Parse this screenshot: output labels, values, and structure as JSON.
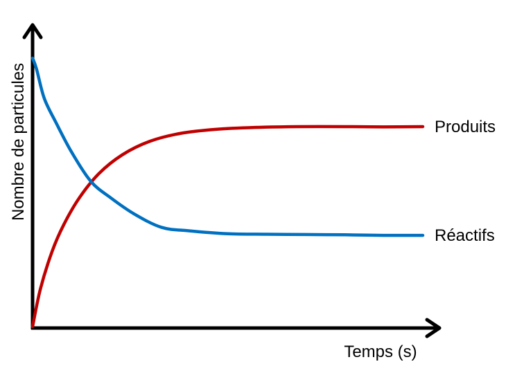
{
  "chart_data": {
    "type": "line",
    "title": "",
    "xlabel": "Temps (s)",
    "ylabel": "Nombre de particules",
    "xlim": [
      0,
      100
    ],
    "ylim": [
      0,
      100
    ],
    "grid": false,
    "ticks": false,
    "series": [
      {
        "name": "Produits",
        "color": "#c00000",
        "x": [
          0,
          2,
          5,
          8,
          12,
          17,
          23,
          30,
          38,
          47,
          57,
          68,
          80,
          90,
          100
        ],
        "y": [
          0,
          14,
          28,
          38,
          48,
          57,
          64,
          69,
          72,
          73.5,
          74.2,
          74.5,
          74.5,
          74.4,
          74.5
        ]
      },
      {
        "name": "Réactifs",
        "color": "#0070c0",
        "x": [
          0,
          1,
          3,
          6,
          10,
          15,
          20,
          26,
          33,
          40,
          50,
          60,
          70,
          80,
          90,
          100
        ],
        "y": [
          100,
          96,
          85,
          76,
          65,
          54,
          48,
          42,
          37,
          35.7,
          34.6,
          34.4,
          34.3,
          34.2,
          34.0,
          34.0
        ]
      }
    ]
  }
}
